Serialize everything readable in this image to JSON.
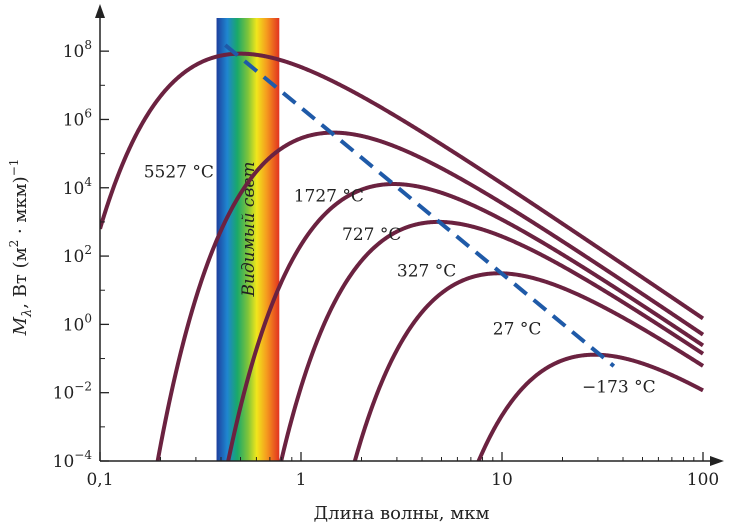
{
  "chart_data": {
    "type": "line",
    "title": "",
    "xlabel": "Длина волны, мкм",
    "ylabel_parts": {
      "sym": "M",
      "sub": "λ",
      "rest": ", Вт (м",
      "sup2": "2",
      "dot": " · мкм)",
      "supm1": "−1"
    },
    "x_scale": "log",
    "y_scale": "log",
    "xlim": [
      0.1,
      100
    ],
    "ylim": [
      0.0001,
      1000000000
    ],
    "x_ticks": [
      {
        "value": 0.1,
        "label": "0,1"
      },
      {
        "value": 1,
        "label": "1"
      },
      {
        "value": 10,
        "label": "10"
      },
      {
        "value": 100,
        "label": "100"
      }
    ],
    "y_ticks": [
      {
        "value": 0.0001,
        "base": "10",
        "exp": "−4"
      },
      {
        "value": 0.01,
        "base": "10",
        "exp": "−2"
      },
      {
        "value": 1,
        "base": "10",
        "exp": "0"
      },
      {
        "value": 100,
        "base": "10",
        "exp": "2"
      },
      {
        "value": 10000,
        "base": "10",
        "exp": "4"
      },
      {
        "value": 1000000,
        "base": "10",
        "exp": "6"
      },
      {
        "value": 100000000,
        "base": "10",
        "exp": "8"
      }
    ],
    "series": [
      {
        "label": "5527 °C",
        "temperature_c": 5527,
        "label_at": {
          "x": 0.165,
          "y": 20000
        }
      },
      {
        "label": "1727 °C",
        "temperature_c": 1727,
        "label_at": {
          "x": 0.92,
          "y": 4000
        }
      },
      {
        "label": "727 °C",
        "temperature_c": 727,
        "label_at": {
          "x": 1.6,
          "y": 300
        }
      },
      {
        "label": "327 °C",
        "temperature_c": 327,
        "label_at": {
          "x": 3.0,
          "y": 25
        }
      },
      {
        "label": "27 °C",
        "temperature_c": 27,
        "label_at": {
          "x": 9.0,
          "y": 0.5
        }
      },
      {
        "label": "−173 °C",
        "temperature_c": -173,
        "label_at": {
          "x": 25,
          "y": 0.01
        }
      }
    ],
    "wien_line": {
      "style": "dashed",
      "x": [
        0.42,
        36
      ],
      "y": [
        150000000,
        0.06
      ]
    },
    "visible_band": {
      "label": "Видимый свет",
      "x_range": [
        0.38,
        0.78
      ]
    },
    "colors": {
      "curve": "#6b2240",
      "wien": "#1f5aa8",
      "axis": "#222222"
    }
  }
}
